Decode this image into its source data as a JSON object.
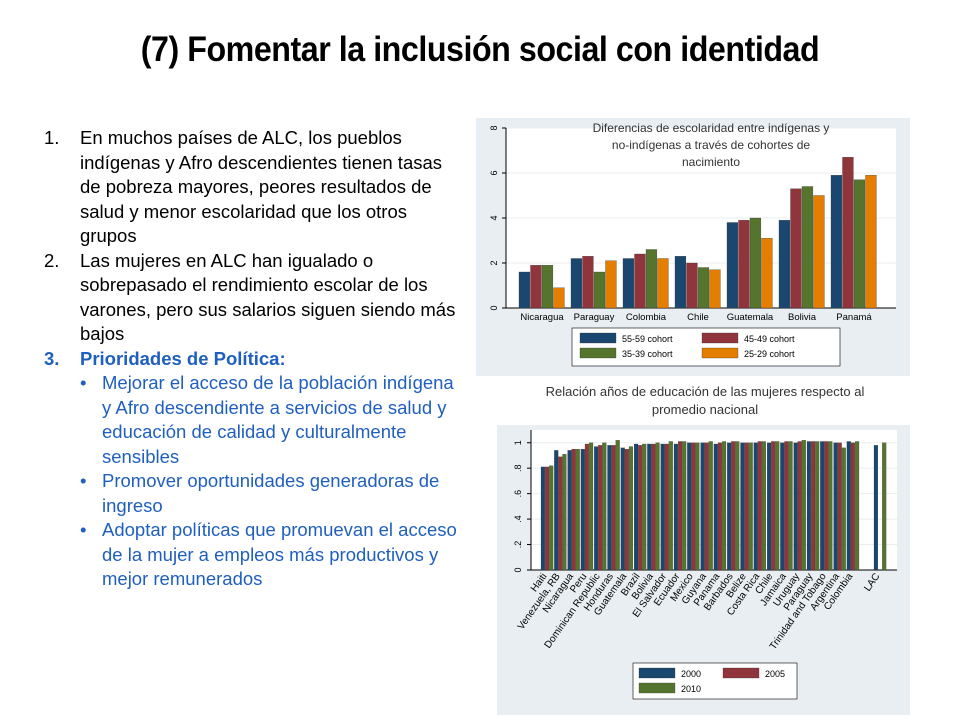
{
  "title": "(7) Fomentar la inclusión social con identidad",
  "points": [
    {
      "num": "1.",
      "text": "En muchos países de ALC, los pueblos indígenas y Afro descendientes tienen tasas de pobreza mayores, peores resultados de salud y menor escolaridad  que los otros grupos"
    },
    {
      "num": "2.",
      "text": "Las mujeres en ALC han igualado o sobrepasado el rendimiento escolar de los varones, pero sus salarios siguen siendo más bajos"
    },
    {
      "num": "3.",
      "text": "Prioridades de Política:"
    }
  ],
  "policies": [
    "Mejorar el acceso de la población indígena y Afro descendiente a servicios de salud y educación de calidad y culturalmente sensibles",
    "Promover oportunidades generadoras de ingreso",
    "Adoptar políticas que promuevan el acceso de la mujer a empleos más productivos y mejor remunerados"
  ],
  "chart_data": [
    {
      "type": "bar",
      "title": "Diferencias de escolaridad entre indígenas y no-indígenas  a través de cohortes de nacimiento",
      "categories": [
        "Nicaragua",
        "Paraguay",
        "Colombia",
        "Chile",
        "Guatemala",
        "Bolivia",
        "Panamá"
      ],
      "series": [
        {
          "name": "55-59 cohort",
          "color": "#1a476f",
          "values": [
            1.6,
            2.2,
            2.2,
            2.3,
            3.8,
            3.9,
            5.9
          ]
        },
        {
          "name": "45-49 cohort",
          "color": "#90353b",
          "values": [
            1.9,
            2.3,
            2.4,
            2.0,
            3.9,
            5.3,
            6.7
          ]
        },
        {
          "name": "35-39 cohort",
          "color": "#55752f",
          "values": [
            1.9,
            1.6,
            2.6,
            1.8,
            4.0,
            5.4,
            5.7
          ]
        },
        {
          "name": "25-29 cohort",
          "color": "#e37e00",
          "values": [
            0.9,
            2.1,
            2.2,
            1.7,
            3.1,
            5.0,
            5.9
          ]
        }
      ],
      "ylim": [
        0,
        8
      ],
      "yticks": [
        "0",
        "2",
        "4",
        "6",
        "8"
      ],
      "legend": "bottom"
    },
    {
      "type": "bar",
      "title": "Relación años de educación de las mujeres respecto al promedio nacional",
      "categories": [
        "Haiti",
        "Venezuela, RB",
        "Nicaragua",
        "Peru",
        "Dominican Republic",
        "Honduras",
        "Guatemala",
        "Brazil",
        "Bolivia",
        "El Salvador",
        "Ecuador",
        "Mexico",
        "Guyana",
        "Panama",
        "Barbados",
        "Belize",
        "Costa Rica",
        "Chile",
        "Jamaica",
        "Uruguay",
        "Paraguay",
        "Trinidad and Tobago",
        "Argentina",
        "Colombia",
        "LAC"
      ],
      "series": [
        {
          "name": "2000",
          "color": "#1a476f",
          "values": [
            0.81,
            0.94,
            0.94,
            0.95,
            0.97,
            0.98,
            0.96,
            0.99,
            0.99,
            0.99,
            0.99,
            1.0,
            1.0,
            0.99,
            1.0,
            1.0,
            1.0,
            1.0,
            1.0,
            1.0,
            1.01,
            1.01,
            1.0,
            1.01,
            0.98
          ]
        },
        {
          "name": "2005",
          "color": "#90353b",
          "values": [
            0.81,
            0.89,
            0.95,
            0.99,
            0.98,
            0.98,
            0.95,
            0.98,
            0.99,
            0.99,
            1.01,
            1.0,
            1.0,
            1.0,
            1.01,
            1.0,
            1.01,
            1.01,
            1.01,
            1.01,
            1.01,
            1.01,
            1.0,
            1.0,
            null
          ]
        },
        {
          "name": "2010",
          "color": "#55752f",
          "values": [
            0.82,
            0.91,
            0.95,
            1.0,
            1.0,
            1.02,
            0.97,
            0.99,
            1.0,
            1.01,
            1.01,
            1.0,
            1.01,
            1.01,
            1.01,
            1.0,
            1.01,
            1.01,
            1.01,
            1.02,
            1.01,
            1.01,
            0.96,
            1.01,
            1.0
          ]
        }
      ],
      "ylim": [
        0,
        1.1
      ],
      "yticks": [
        "0",
        ".2",
        ".4",
        ".6",
        ".8",
        "1"
      ],
      "legend": "bottom"
    }
  ]
}
